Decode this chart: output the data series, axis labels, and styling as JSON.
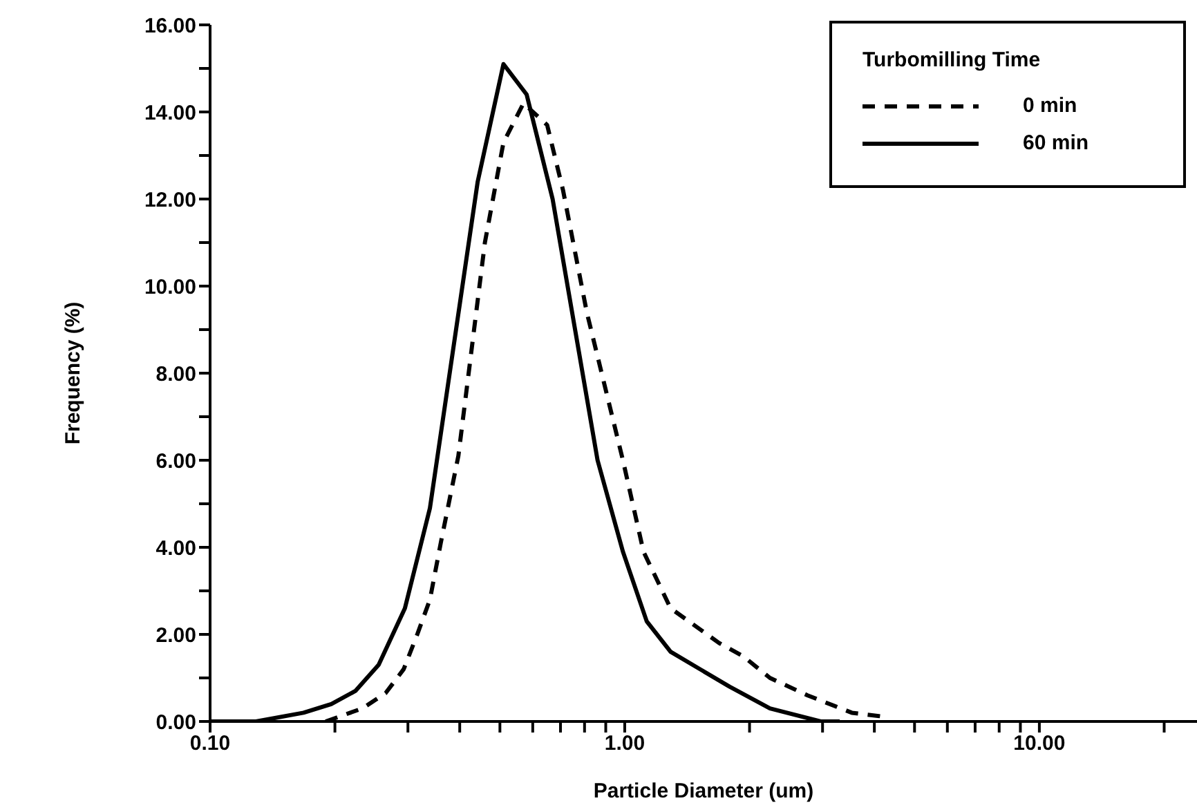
{
  "chart_data": {
    "type": "line",
    "xlabel": "Particle Diameter (um)",
    "ylabel": "Frequency (%)",
    "legend_title": "Turbomilling Time",
    "log": "x",
    "legend": "top right",
    "marker": "none",
    "grid": false,
    "xlim": [
      0.1,
      24
    ],
    "xticks": [
      {
        "value": 0.1,
        "label": "0.10"
      },
      {
        "value": 0.2,
        "label": null
      },
      {
        "value": 0.3,
        "label": null
      },
      {
        "value": 0.4,
        "label": null
      },
      {
        "value": 0.5,
        "label": null
      },
      {
        "value": 0.6,
        "label": null
      },
      {
        "value": 0.7,
        "label": null
      },
      {
        "value": 0.8,
        "label": null
      },
      {
        "value": 0.9,
        "label": null
      },
      {
        "value": 1,
        "label": "1.00"
      },
      {
        "value": 2,
        "label": null
      },
      {
        "value": 3,
        "label": null
      },
      {
        "value": 4,
        "label": null
      },
      {
        "value": 5,
        "label": null
      },
      {
        "value": 6,
        "label": null
      },
      {
        "value": 7,
        "label": null
      },
      {
        "value": 8,
        "label": null
      },
      {
        "value": 9,
        "label": null
      },
      {
        "value": 10,
        "label": "10.00"
      },
      {
        "value": 20,
        "label": null
      }
    ],
    "ylim": [
      0,
      16
    ],
    "yticks": [
      {
        "value": 0,
        "label": "0.00"
      },
      {
        "value": 1,
        "label": null
      },
      {
        "value": 2,
        "label": "2.00"
      },
      {
        "value": 3,
        "label": null
      },
      {
        "value": 4,
        "label": "4.00"
      },
      {
        "value": 5,
        "label": null
      },
      {
        "value": 6,
        "label": "6.00"
      },
      {
        "value": 7,
        "label": null
      },
      {
        "value": 8,
        "label": "8.00"
      },
      {
        "value": 9,
        "label": null
      },
      {
        "value": 10,
        "label": "10.00"
      },
      {
        "value": 11,
        "label": null
      },
      {
        "value": 12,
        "label": "12.00"
      },
      {
        "value": 13,
        "label": null
      },
      {
        "value": 14,
        "label": "14.00"
      },
      {
        "value": 15,
        "label": null
      },
      {
        "value": 16,
        "label": "16.00"
      }
    ],
    "series": [
      {
        "name": "0 min",
        "color": "#000000",
        "line_style": "dashed",
        "x": [
          0.19,
          0.233,
          0.265,
          0.293,
          0.316,
          0.339,
          0.36,
          0.397,
          0.46,
          0.51,
          0.57,
          0.65,
          0.71,
          0.81,
          0.99,
          1.11,
          1.29,
          1.69,
          1.93,
          2.24,
          2.76,
          3.53,
          4.3
        ],
        "values": [
          0,
          0.3,
          0.65,
          1.2,
          2.0,
          2.8,
          4.1,
          6.1,
          11.0,
          13.3,
          14.2,
          13.7,
          12.2,
          9.4,
          6.0,
          3.9,
          2.6,
          1.8,
          1.5,
          1.0,
          0.6,
          0.2,
          0.1
        ]
      },
      {
        "name": "60 min",
        "color": "#000000",
        "line_style": "solid",
        "x": [
          0.1,
          0.129,
          0.168,
          0.196,
          0.224,
          0.255,
          0.295,
          0.339,
          0.442,
          0.51,
          0.58,
          0.67,
          0.86,
          0.99,
          1.13,
          1.29,
          1.79,
          2.24,
          2.97,
          3.3
        ],
        "values": [
          0,
          0,
          0.2,
          0.4,
          0.7,
          1.3,
          2.6,
          4.9,
          12.4,
          15.1,
          14.4,
          12.0,
          6.0,
          3.9,
          2.3,
          1.6,
          0.8,
          0.3,
          0,
          0
        ]
      }
    ]
  }
}
